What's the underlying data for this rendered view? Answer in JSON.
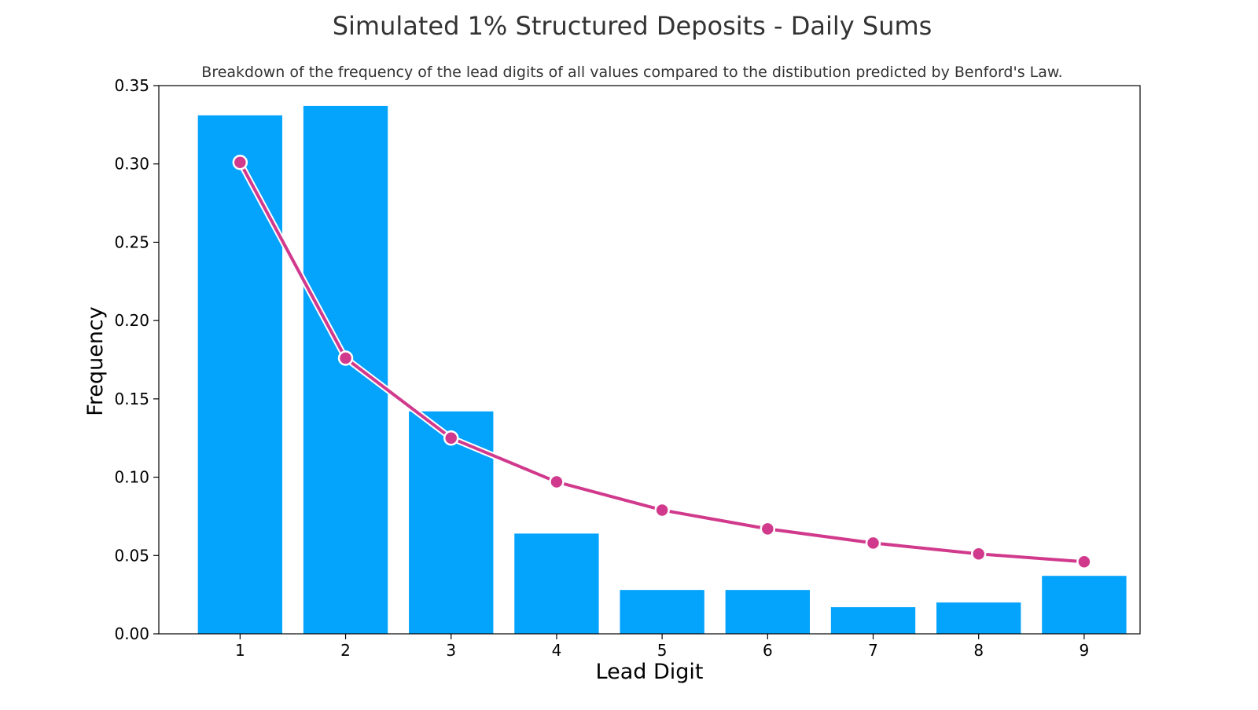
{
  "chart_data": {
    "type": "bar",
    "title": "Simulated 1% Structured Deposits - Daily Sums",
    "subtitle": "Breakdown of the frequency of the lead digits of all values compared to the distibution predicted by Benford's Law.",
    "xlabel": "Lead Digit",
    "ylabel": "Frequency",
    "categories": [
      "1",
      "2",
      "3",
      "4",
      "5",
      "6",
      "7",
      "8",
      "9"
    ],
    "ylim": [
      0,
      0.35
    ],
    "yticks": [
      "0.00",
      "0.05",
      "0.10",
      "0.15",
      "0.20",
      "0.25",
      "0.30",
      "0.35"
    ],
    "grid": false,
    "series": [
      {
        "kind": "bar",
        "values": [
          0.331,
          0.337,
          0.142,
          0.064,
          0.028,
          0.028,
          0.017,
          0.02,
          0.037
        ],
        "color": "#04a3fc"
      },
      {
        "kind": "line",
        "values": [
          0.301,
          0.176,
          0.125,
          0.097,
          0.079,
          0.067,
          0.058,
          0.051,
          0.046
        ],
        "color": "#d13a8c",
        "marker_edge": "#ffffff"
      }
    ]
  }
}
